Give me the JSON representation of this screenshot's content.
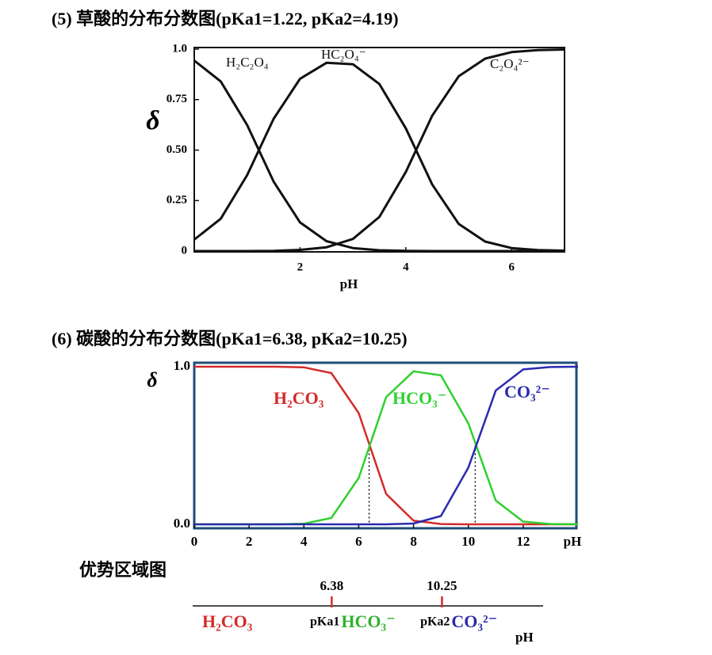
{
  "chart_data": [
    {
      "type": "line",
      "title": "(5) 草酸的分布分数图(pKa1=1.22, pKa2=4.19)",
      "xlabel": "pH",
      "ylabel": "δ",
      "x": [
        0,
        0.5,
        1,
        1.5,
        2,
        2.5,
        3,
        3.5,
        4,
        4.5,
        5,
        5.5,
        6,
        6.5,
        7
      ],
      "series": [
        {
          "name": "H₂C₂O₄",
          "color": "#111111",
          "values": [
            0.943,
            0.84,
            0.624,
            0.344,
            0.142,
            0.049,
            0.015,
            0.004,
            0.001,
            0,
            0,
            0,
            0,
            0,
            0
          ]
        },
        {
          "name": "HC₂O₄⁻",
          "color": "#111111",
          "values": [
            0.057,
            0.16,
            0.376,
            0.655,
            0.853,
            0.932,
            0.925,
            0.827,
            0.607,
            0.329,
            0.134,
            0.047,
            0.015,
            0.005,
            0.002
          ]
        },
        {
          "name": "C₂O₄²⁻",
          "color": "#111111",
          "values": [
            0,
            0,
            0,
            0.001,
            0.006,
            0.019,
            0.06,
            0.169,
            0.392,
            0.671,
            0.866,
            0.953,
            0.985,
            0.995,
            0.998
          ]
        }
      ],
      "xlim": [
        0,
        7
      ],
      "ylim": [
        0,
        1
      ],
      "xticks": [
        2,
        4,
        6
      ],
      "yticks": [
        0,
        0.25,
        {
          "value": 0.5,
          "label": "0.50"
        },
        0.75,
        {
          "value": 1,
          "label": "1.0"
        }
      ]
    },
    {
      "type": "line",
      "title": "(6) 碳酸的分布分数图(pKa1=6.38, pKa2=10.25)",
      "xlabel": "pH",
      "ylabel": "δ",
      "x": [
        0,
        1,
        2,
        3,
        4,
        5,
        6,
        7,
        8,
        9,
        10,
        11,
        12,
        13,
        14
      ],
      "series": [
        {
          "name": "H₂CO₃",
          "color": "#d42a2a",
          "values": [
            1,
            1,
            1,
            1,
            0.996,
            0.96,
            0.706,
            0.193,
            0.023,
            0.002,
            0,
            0,
            0,
            0,
            0
          ]
        },
        {
          "name": "HCO₃⁻",
          "color": "#2fd02f",
          "values": [
            0,
            0,
            0,
            0,
            0.004,
            0.04,
            0.294,
            0.807,
            0.971,
            0.945,
            0.64,
            0.151,
            0.017,
            0.002,
            0
          ]
        },
        {
          "name": "CO₃²⁻",
          "color": "#2a2ab0",
          "values": [
            0,
            0,
            0,
            0,
            0,
            0,
            0,
            0,
            0.005,
            0.053,
            0.36,
            0.849,
            0.983,
            0.998,
            1
          ]
        }
      ],
      "pka_lines": [
        6.38,
        10.25
      ],
      "xlim": [
        0,
        14
      ],
      "ylim": [
        0,
        1
      ],
      "xticks": [
        0,
        2,
        4,
        6,
        8,
        10,
        12
      ],
      "yticks": [
        {
          "value": 0,
          "label": "0.0"
        },
        {
          "value": 1,
          "label": "1.0"
        }
      ]
    }
  ],
  "dominance": {
    "title": "优势区域图",
    "xlim": [
      1.5,
      13.8
    ],
    "ticks": [
      6.38,
      10.25
    ],
    "tick_names": [
      "pKa1",
      "pKa2"
    ],
    "species": [
      {
        "name": "H₂CO₃",
        "color": "#d42a2a"
      },
      {
        "name": "HCO₃⁻",
        "color": "#2fb02f"
      },
      {
        "name": "CO₃²⁻",
        "color": "#2a2ab0"
      }
    ],
    "xlabel": "pH"
  }
}
